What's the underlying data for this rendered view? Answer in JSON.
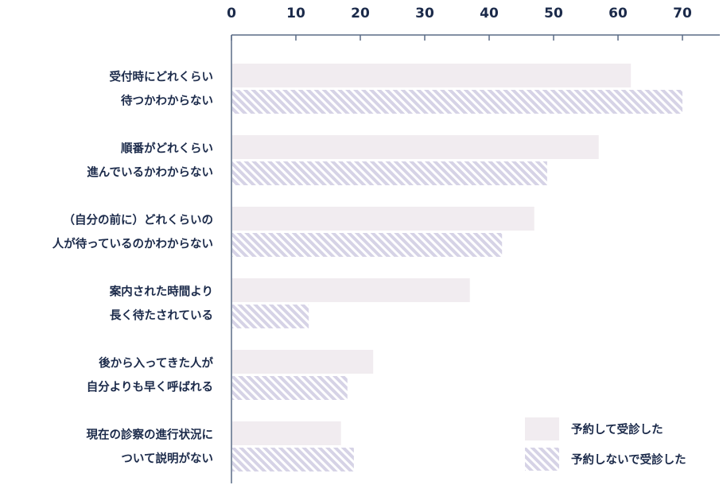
{
  "chart_data": {
    "type": "bar",
    "orientation": "horizontal",
    "categories": [
      [
        "受付時にどれくらい",
        "待つかわからない"
      ],
      [
        "順番がどれくらい",
        "進んでいるかわからない"
      ],
      [
        "（自分の前に）どれくらいの",
        "人が待っているのかわからない"
      ],
      [
        "案内された時間より",
        "長く待たされている"
      ],
      [
        "後から入ってきた人が",
        "自分よりも早く呼ばれる"
      ],
      [
        "現在の診察の進行状況に",
        "ついて説明がない"
      ]
    ],
    "series": [
      {
        "name": "予約して受診した",
        "values": [
          62,
          57,
          47,
          37,
          22,
          17
        ],
        "color": "#f1ecf0",
        "pattern": "solid"
      },
      {
        "name": "予約しないで受診した",
        "values": [
          70,
          49,
          42,
          12,
          18,
          19
        ],
        "color": "#d6d3e6",
        "stripe_color": "#ffffff",
        "pattern": "diagonal-hatch"
      }
    ],
    "xlim": [
      0,
      75
    ],
    "xticks": [
      0,
      10,
      20,
      30,
      40,
      50,
      60,
      70
    ],
    "axis_position": "top",
    "grid": false,
    "legend_position": "bottom-right",
    "axis_color": "#5a6b86",
    "text_color": "#1b2a4a"
  }
}
